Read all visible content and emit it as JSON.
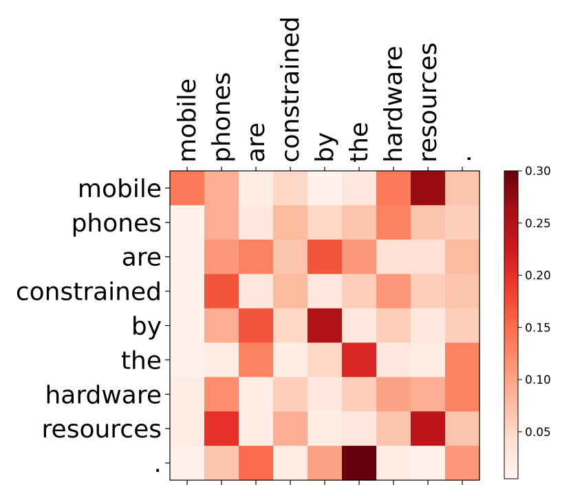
{
  "chart_data": {
    "type": "heatmap",
    "colormap": "Reds",
    "x_tokens": [
      "mobile",
      "phones",
      "are",
      "constrained",
      "by",
      "the",
      "hardware",
      "resources",
      "."
    ],
    "y_tokens": [
      "mobile",
      "phones",
      "are",
      "constrained",
      "by",
      "the",
      "hardware",
      "resources",
      "."
    ],
    "values": [
      [
        0.14,
        0.09,
        0.02,
        0.05,
        0.01,
        0.03,
        0.14,
        0.27,
        0.07
      ],
      [
        0.01,
        0.09,
        0.03,
        0.08,
        0.05,
        0.07,
        0.13,
        0.07,
        0.06
      ],
      [
        0.01,
        0.11,
        0.13,
        0.07,
        0.17,
        0.11,
        0.04,
        0.04,
        0.08
      ],
      [
        0.01,
        0.17,
        0.03,
        0.08,
        0.03,
        0.06,
        0.11,
        0.06,
        0.07
      ],
      [
        0.01,
        0.09,
        0.17,
        0.05,
        0.25,
        0.03,
        0.06,
        0.03,
        0.06
      ],
      [
        0.01,
        0.02,
        0.13,
        0.02,
        0.05,
        0.21,
        0.03,
        0.02,
        0.13
      ],
      [
        0.02,
        0.12,
        0.02,
        0.06,
        0.03,
        0.06,
        0.1,
        0.09,
        0.13
      ],
      [
        0.02,
        0.2,
        0.02,
        0.09,
        0.02,
        0.03,
        0.07,
        0.24,
        0.07
      ],
      [
        0.01,
        0.07,
        0.15,
        0.02,
        0.1,
        0.3,
        0.02,
        0.01,
        0.11
      ]
    ],
    "colorbar": {
      "range": [
        0.005,
        0.3
      ],
      "ticks": [
        0.05,
        0.1,
        0.15,
        0.2,
        0.25,
        0.3
      ],
      "tick_labels": [
        "0.05",
        "0.10",
        "0.15",
        "0.20",
        "0.25",
        "0.30"
      ]
    },
    "title": "",
    "xlabel": "",
    "ylabel": "",
    "x_tick_position": "top",
    "grid": false
  }
}
